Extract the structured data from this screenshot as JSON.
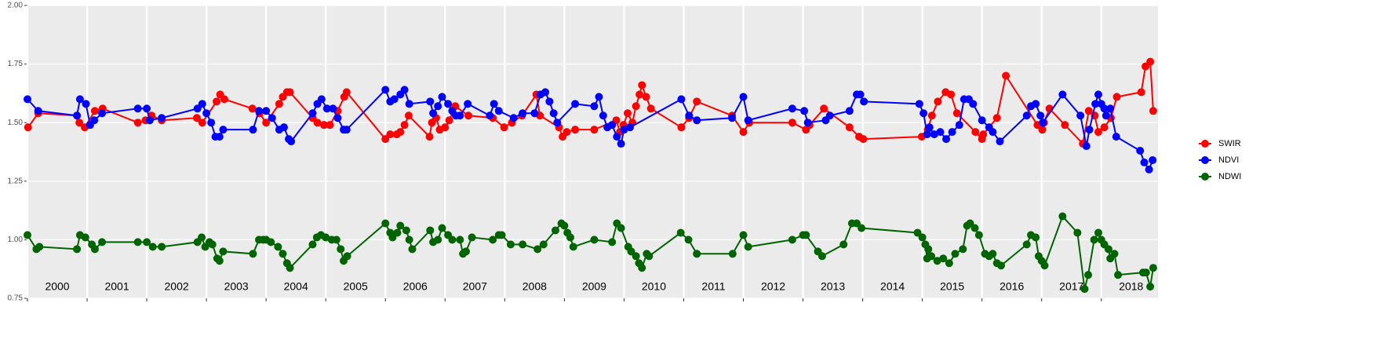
{
  "chart_data": {
    "type": "line",
    "xlim": [
      2000,
      2018.95
    ],
    "xticks": [
      2000,
      2001,
      2002,
      2003,
      2004,
      2005,
      2006,
      2007,
      2008,
      2009,
      2010,
      2011,
      2012,
      2013,
      2014,
      2015,
      2016,
      2017,
      2018
    ],
    "ylim": [
      0.75,
      2.0
    ],
    "yticks": [
      {
        "value": 0.75,
        "label": "0.75"
      },
      {
        "value": 1.0,
        "label": "1.00"
      },
      {
        "value": 1.25,
        "label": "1.25"
      },
      {
        "value": 1.5,
        "label": "1.50"
      },
      {
        "value": 1.75,
        "label": "1.75"
      },
      {
        "value": 2.0,
        "label": "2.00"
      }
    ],
    "grid": true,
    "legend": "right",
    "series": [
      {
        "name": "SWIR",
        "color": "#ff0000",
        "x": [
          2000.01,
          2000.18,
          2000.83,
          2000.87,
          2000.96,
          2001.13,
          2001.26,
          2001.85,
          2001.98,
          2002.08,
          2002.25,
          2002.84,
          2002.93,
          2003.17,
          2003.23,
          2003.3,
          2003.77,
          2003.89,
          2004.0,
          2004.22,
          2004.28,
          2004.35,
          2004.4,
          2004.78,
          2004.86,
          2004.97,
          2005.07,
          2005.2,
          2005.31,
          2005.35,
          2006.0,
          2006.08,
          2006.19,
          2006.25,
          2006.32,
          2006.39,
          2006.74,
          2006.78,
          2006.85,
          2006.91,
          2007.0,
          2007.07,
          2007.17,
          2007.39,
          2007.8,
          2007.99,
          2008.12,
          2008.29,
          2008.53,
          2008.59,
          2008.91,
          2008.97,
          2009.04,
          2009.18,
          2009.5,
          2009.87,
          2009.93,
          2009.99,
          2010.06,
          2010.14,
          2010.2,
          2010.26,
          2010.3,
          2010.37,
          2010.45,
          2010.96,
          2011.09,
          2011.22,
          2011.81,
          2012.0,
          2012.1,
          2012.82,
          2013.05,
          2013.11,
          2013.35,
          2013.78,
          2013.94,
          2014.01,
          2014.99,
          2015.09,
          2015.16,
          2015.26,
          2015.39,
          2015.48,
          2015.58,
          2015.89,
          2016.0,
          2016.02,
          2016.25,
          2016.4,
          2016.93,
          2017.01,
          2017.04,
          2017.13,
          2017.39,
          2017.69,
          2017.79,
          2017.89,
          2017.95,
          2018.05,
          2018.16,
          2018.26,
          2018.67,
          2018.74,
          2018.82,
          2018.87
        ],
        "values": [
          1.48,
          1.54,
          1.53,
          1.5,
          1.48,
          1.55,
          1.56,
          1.5,
          1.51,
          1.53,
          1.51,
          1.52,
          1.5,
          1.59,
          1.62,
          1.6,
          1.56,
          1.54,
          1.5,
          1.58,
          1.61,
          1.63,
          1.63,
          1.52,
          1.5,
          1.49,
          1.49,
          1.55,
          1.61,
          1.63,
          1.43,
          1.45,
          1.45,
          1.46,
          1.49,
          1.53,
          1.44,
          1.5,
          1.52,
          1.47,
          1.48,
          1.51,
          1.57,
          1.53,
          1.52,
          1.48,
          1.5,
          1.53,
          1.62,
          1.53,
          1.48,
          1.44,
          1.46,
          1.47,
          1.47,
          1.51,
          1.46,
          1.49,
          1.54,
          1.5,
          1.57,
          1.62,
          1.66,
          1.61,
          1.56,
          1.48,
          1.52,
          1.59,
          1.53,
          1.46,
          1.5,
          1.5,
          1.47,
          1.49,
          1.56,
          1.48,
          1.44,
          1.43,
          1.44,
          1.47,
          1.53,
          1.59,
          1.63,
          1.62,
          1.54,
          1.46,
          1.43,
          1.45,
          1.52,
          1.7,
          1.49,
          1.47,
          1.5,
          1.56,
          1.49,
          1.41,
          1.55,
          1.53,
          1.46,
          1.48,
          1.52,
          1.61,
          1.63,
          1.74,
          1.76,
          1.55
        ]
      },
      {
        "name": "NDVI",
        "color": "#0000ff",
        "x": [
          2000.0,
          2000.18,
          2000.83,
          2000.88,
          2000.98,
          2001.05,
          2001.12,
          2001.25,
          2001.85,
          2002.0,
          2002.05,
          2002.25,
          2002.85,
          2002.93,
          2003.0,
          2003.08,
          2003.15,
          2003.22,
          2003.28,
          2003.78,
          2003.88,
          2004.0,
          2004.1,
          2004.22,
          2004.3,
          2004.38,
          2004.42,
          2004.78,
          2004.86,
          2004.93,
          2005.02,
          2005.12,
          2005.2,
          2005.3,
          2005.35,
          2006.0,
          2006.08,
          2006.15,
          2006.25,
          2006.32,
          2006.4,
          2006.75,
          2006.8,
          2006.88,
          2006.95,
          2007.05,
          2007.12,
          2007.18,
          2007.25,
          2007.38,
          2007.75,
          2007.82,
          2007.9,
          2008.15,
          2008.3,
          2008.5,
          2008.6,
          2008.68,
          2008.75,
          2008.82,
          2008.88,
          2009.18,
          2009.5,
          2009.58,
          2009.65,
          2009.72,
          2009.8,
          2009.88,
          2009.95,
          2010.0,
          2010.1,
          2010.96,
          2011.09,
          2011.22,
          2011.81,
          2012.0,
          2012.08,
          2012.82,
          2013.02,
          2013.08,
          2013.38,
          2013.45,
          2013.78,
          2013.9,
          2013.96,
          2014.02,
          2014.95,
          2015.02,
          2015.08,
          2015.12,
          2015.2,
          2015.3,
          2015.4,
          2015.5,
          2015.62,
          2015.7,
          2015.78,
          2015.85,
          2016.0,
          2016.12,
          2016.18,
          2016.3,
          2016.75,
          2016.82,
          2016.9,
          2016.98,
          2017.02,
          2017.35,
          2017.65,
          2017.75,
          2017.8,
          2017.9,
          2017.95,
          2018.0,
          2018.05,
          2018.08,
          2018.15,
          2018.25,
          2018.65,
          2018.72,
          2018.8,
          2018.86
        ],
        "values": [
          1.6,
          1.55,
          1.53,
          1.6,
          1.58,
          1.49,
          1.51,
          1.54,
          1.56,
          1.56,
          1.51,
          1.52,
          1.56,
          1.58,
          1.54,
          1.5,
          1.44,
          1.44,
          1.47,
          1.47,
          1.55,
          1.55,
          1.52,
          1.47,
          1.48,
          1.43,
          1.42,
          1.54,
          1.58,
          1.6,
          1.56,
          1.56,
          1.52,
          1.47,
          1.47,
          1.64,
          1.59,
          1.6,
          1.62,
          1.64,
          1.58,
          1.59,
          1.54,
          1.57,
          1.61,
          1.58,
          1.55,
          1.53,
          1.53,
          1.58,
          1.53,
          1.58,
          1.55,
          1.52,
          1.54,
          1.54,
          1.62,
          1.63,
          1.59,
          1.54,
          1.5,
          1.58,
          1.57,
          1.61,
          1.53,
          1.48,
          1.49,
          1.44,
          1.41,
          1.47,
          1.48,
          1.6,
          1.53,
          1.51,
          1.52,
          1.61,
          1.51,
          1.56,
          1.55,
          1.5,
          1.51,
          1.53,
          1.55,
          1.62,
          1.62,
          1.59,
          1.58,
          1.54,
          1.45,
          1.48,
          1.45,
          1.46,
          1.43,
          1.46,
          1.49,
          1.6,
          1.6,
          1.58,
          1.51,
          1.48,
          1.46,
          1.42,
          1.53,
          1.57,
          1.58,
          1.53,
          1.5,
          1.62,
          1.53,
          1.4,
          1.47,
          1.58,
          1.62,
          1.58,
          1.56,
          1.53,
          1.56,
          1.44,
          1.38,
          1.33,
          1.3,
          1.34
        ]
      },
      {
        "name": "NDWI",
        "color": "#006400",
        "x": [
          2000.0,
          2000.15,
          2000.2,
          2000.83,
          2000.88,
          2000.97,
          2001.08,
          2001.13,
          2001.25,
          2001.85,
          2002.0,
          2002.1,
          2002.25,
          2002.85,
          2002.92,
          2002.98,
          2003.05,
          2003.1,
          2003.18,
          2003.22,
          2003.28,
          2003.78,
          2003.88,
          2003.95,
          2004.0,
          2004.08,
          2004.2,
          2004.28,
          2004.35,
          2004.4,
          2004.78,
          2004.85,
          2004.92,
          2005.0,
          2005.1,
          2005.18,
          2005.25,
          2005.3,
          2005.36,
          2006.0,
          2006.08,
          2006.12,
          2006.2,
          2006.25,
          2006.35,
          2006.4,
          2006.45,
          2006.75,
          2006.8,
          2006.88,
          2006.95,
          2007.05,
          2007.12,
          2007.25,
          2007.3,
          2007.35,
          2007.45,
          2007.8,
          2007.9,
          2007.95,
          2008.1,
          2008.3,
          2008.55,
          2008.65,
          2008.85,
          2008.95,
          2009.0,
          2009.05,
          2009.1,
          2009.15,
          2009.5,
          2009.8,
          2009.88,
          2009.95,
          2010.07,
          2010.12,
          2010.2,
          2010.25,
          2010.3,
          2010.38,
          2010.42,
          2010.95,
          2011.08,
          2011.22,
          2011.82,
          2012.0,
          2012.08,
          2012.82,
          2013.0,
          2013.05,
          2013.25,
          2013.32,
          2013.68,
          2013.82,
          2013.9,
          2013.98,
          2014.92,
          2015.0,
          2015.05,
          2015.08,
          2015.1,
          2015.15,
          2015.25,
          2015.35,
          2015.45,
          2015.55,
          2015.68,
          2015.75,
          2015.8,
          2015.88,
          2015.95,
          2016.05,
          2016.12,
          2016.18,
          2016.25,
          2016.32,
          2016.75,
          2016.82,
          2016.9,
          2016.95,
          2017.0,
          2017.05,
          2017.35,
          2017.6,
          2017.72,
          2017.78,
          2017.88,
          2017.95,
          2018.0,
          2018.05,
          2018.12,
          2018.15,
          2018.22,
          2018.28,
          2018.7,
          2018.75,
          2018.82,
          2018.87
        ],
        "values": [
          1.02,
          0.96,
          0.97,
          0.96,
          1.02,
          1.01,
          0.98,
          0.96,
          0.99,
          0.99,
          0.99,
          0.97,
          0.97,
          0.99,
          1.01,
          0.97,
          0.99,
          0.98,
          0.92,
          0.91,
          0.95,
          0.94,
          1.0,
          1.0,
          1.0,
          0.99,
          0.97,
          0.94,
          0.9,
          0.88,
          0.98,
          1.01,
          1.02,
          1.01,
          1.0,
          1.0,
          0.96,
          0.91,
          0.93,
          1.07,
          1.03,
          1.01,
          1.03,
          1.06,
          1.04,
          1.0,
          0.96,
          1.04,
          0.99,
          1.0,
          1.05,
          1.02,
          1.0,
          1.0,
          0.94,
          0.95,
          1.01,
          1.0,
          1.02,
          1.02,
          0.98,
          0.98,
          0.96,
          0.98,
          1.04,
          1.07,
          1.06,
          1.03,
          1.01,
          0.97,
          1.0,
          0.99,
          1.07,
          1.05,
          0.97,
          0.95,
          0.93,
          0.9,
          0.88,
          0.94,
          0.93,
          1.03,
          1.0,
          0.94,
          0.94,
          1.02,
          0.97,
          1.0,
          1.02,
          1.02,
          0.95,
          0.93,
          0.98,
          1.07,
          1.07,
          1.05,
          1.03,
          1.01,
          0.98,
          0.92,
          0.96,
          0.93,
          0.91,
          0.92,
          0.9,
          0.94,
          0.96,
          1.06,
          1.07,
          1.05,
          1.02,
          0.94,
          0.93,
          0.94,
          0.9,
          0.89,
          0.98,
          1.02,
          1.01,
          0.93,
          0.91,
          0.89,
          1.1,
          1.03,
          0.79,
          0.85,
          1.0,
          1.03,
          1.0,
          0.98,
          0.96,
          0.92,
          0.94,
          0.85,
          0.86,
          0.86,
          0.8,
          0.88
        ]
      }
    ]
  }
}
